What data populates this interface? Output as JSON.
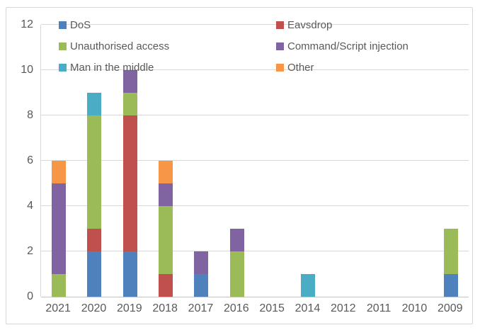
{
  "chart_data": {
    "type": "bar",
    "stacked": true,
    "title": "",
    "xlabel": "",
    "ylabel": "",
    "categories": [
      "2021",
      "2020",
      "2019",
      "2018",
      "2017",
      "2016",
      "2015",
      "2014",
      "2012",
      "2011",
      "2010",
      "2009"
    ],
    "series": [
      {
        "name": "DoS",
        "color": "#4F81BD",
        "values": [
          0,
          2,
          2,
          0,
          1,
          0,
          0,
          0,
          0,
          0,
          0,
          1
        ]
      },
      {
        "name": "Eavsdrop",
        "color": "#C0504D",
        "values": [
          0,
          1,
          6,
          1,
          0,
          0,
          0,
          0,
          0,
          0,
          0,
          0
        ]
      },
      {
        "name": "Unauthorised access",
        "color": "#9BBB59",
        "values": [
          1,
          5,
          1,
          3,
          0,
          2,
          0,
          0,
          0,
          0,
          0,
          2
        ]
      },
      {
        "name": "Command/Script injection",
        "color": "#8064A2",
        "values": [
          4,
          0,
          1,
          1,
          1,
          1,
          0,
          0,
          0,
          0,
          0,
          0
        ]
      },
      {
        "name": "Man in the middle",
        "color": "#4BACC6",
        "values": [
          0,
          1,
          0,
          0,
          0,
          0,
          0,
          1,
          0,
          0,
          0,
          0
        ]
      },
      {
        "name": "Other",
        "color": "#F79646",
        "values": [
          1,
          0,
          0,
          1,
          0,
          0,
          0,
          0,
          0,
          0,
          0,
          0
        ]
      }
    ],
    "totals_by_category": [
      6,
      9,
      10,
      6,
      2,
      3,
      0,
      1,
      0,
      0,
      0,
      3
    ],
    "yticks": [
      0,
      2,
      4,
      6,
      8,
      10,
      12
    ],
    "ylim": [
      0,
      12
    ],
    "grid": true,
    "legend_position": "top-inside",
    "legend_columns": 2
  },
  "colors": {
    "text": "#595959",
    "gridline": "#D9D9D9",
    "axis_line": "#C3C3C3",
    "frame_border": "#D6D6D6",
    "background": "#FFFFFF"
  }
}
